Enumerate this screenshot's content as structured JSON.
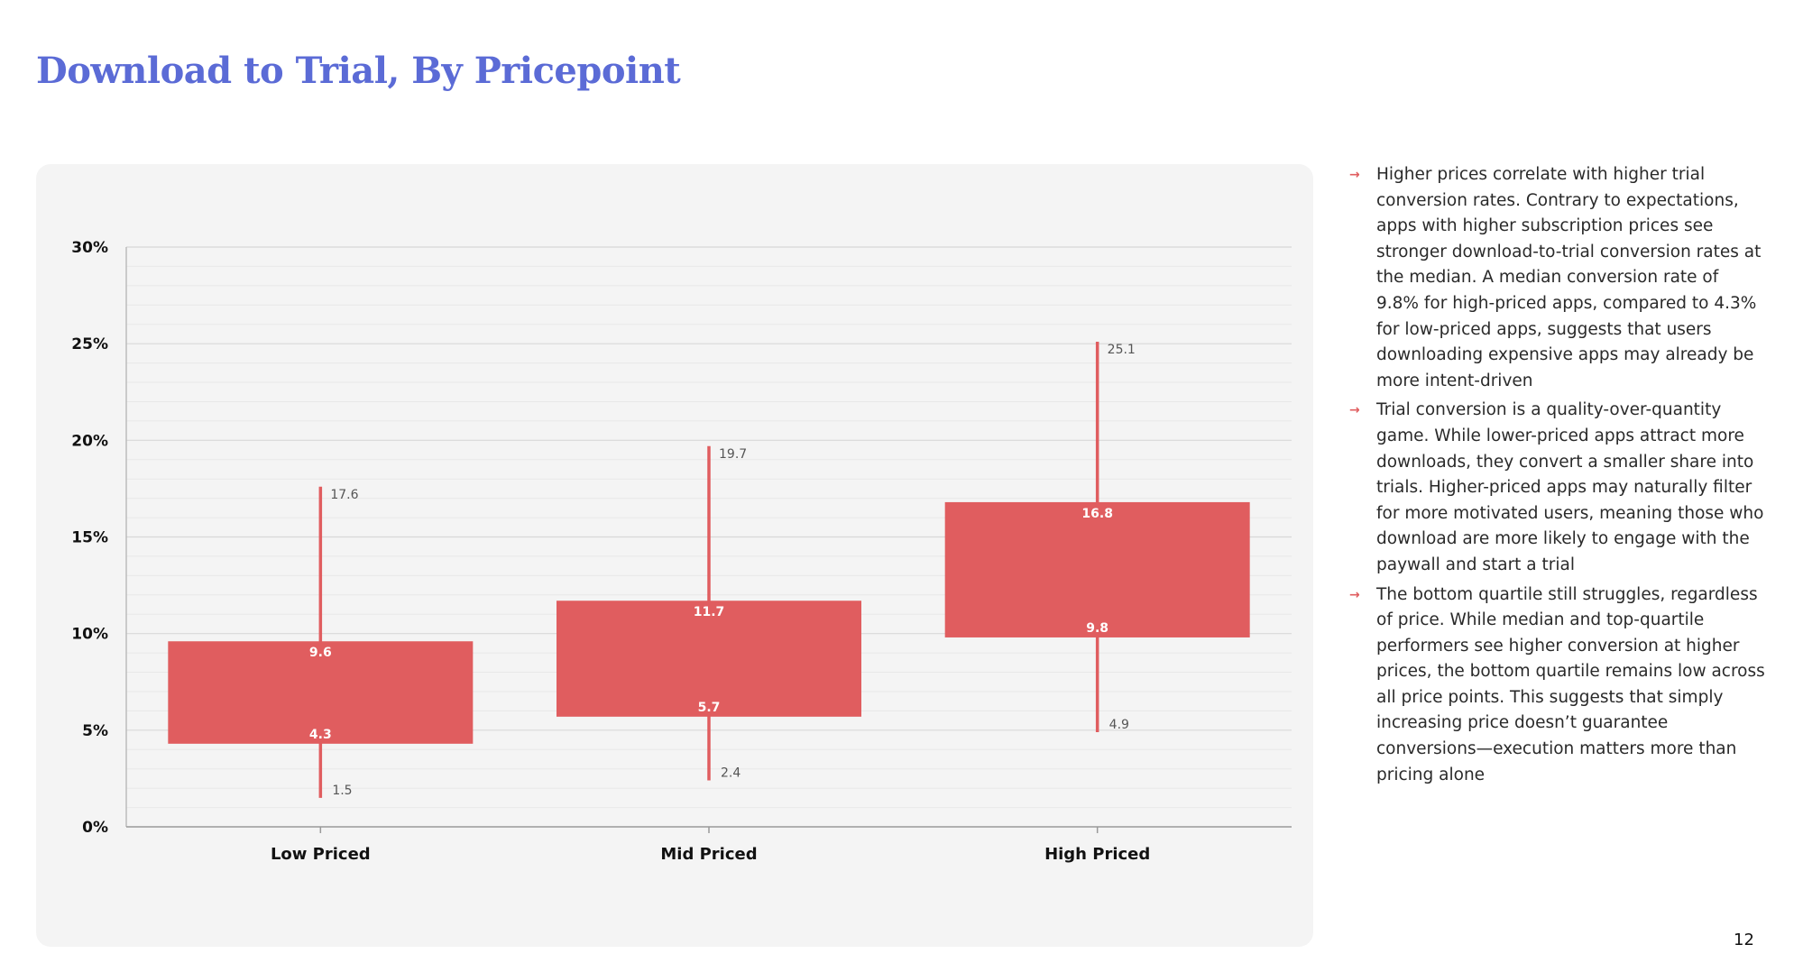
{
  "page": {
    "title": "Download to Trial, By Pricepoint",
    "page_number": "12"
  },
  "notes": [
    {
      "arrow": "→",
      "text": "Higher prices correlate with higher trial conversion rates. Contrary to expectations, apps with higher subscription prices see stronger download-to-trial conversion rates at the median. A median conversion rate of 9.8% for high-priced apps, compared to 4.3% for low-priced apps, suggests that users downloading expensive apps may already be more intent-driven"
    },
    {
      "arrow": "→",
      "text": "Trial conversion is a quality-over-quantity game. While lower-priced apps attract more downloads, they convert a smaller share into trials. Higher-priced apps may naturally filter for more motivated users, meaning those who download are more likely to engage with the paywall and start a trial"
    },
    {
      "arrow": "→",
      "text": "The bottom quartile still struggles, regardless of price. While median and top-quartile performers see higher conversion at higher prices, the bottom quartile remains low across all price points. This suggests that simply increasing price doesn’t guarantee conversions—execution matters more than pricing alone"
    }
  ],
  "colors": {
    "title": "#5b6bd6",
    "bar": "#e05d5f",
    "panel": "#f4f4f4",
    "gridline": "#d8d8d8"
  },
  "chart_data": {
    "type": "box",
    "title": "",
    "xlabel": "",
    "ylabel": "",
    "ylim": [
      0,
      30
    ],
    "yticks": [
      0,
      5,
      10,
      15,
      20,
      25,
      30
    ],
    "ytick_labels": [
      "0%",
      "5%",
      "10%",
      "15%",
      "20%",
      "25%",
      "30%"
    ],
    "grid": true,
    "categories": [
      "Low Priced",
      "Mid Priced",
      "High Priced"
    ],
    "series": [
      {
        "category": "Low Priced",
        "min": 1.5,
        "q1": 4.3,
        "q3": 9.6,
        "max": 17.6,
        "labels": {
          "min": "1.5",
          "q1": "4.3",
          "q3": "9.6",
          "max": "17.6"
        }
      },
      {
        "category": "Mid Priced",
        "min": 2.4,
        "q1": 5.7,
        "q3": 11.7,
        "max": 19.7,
        "labels": {
          "min": "2.4",
          "q1": "5.7",
          "q3": "11.7",
          "max": "19.7"
        }
      },
      {
        "category": "High Priced",
        "min": 4.9,
        "q1": 9.8,
        "q3": 16.8,
        "max": 25.1,
        "labels": {
          "min": "4.9",
          "q1": "9.8",
          "q3": "16.8",
          "max": "25.1"
        }
      }
    ]
  }
}
